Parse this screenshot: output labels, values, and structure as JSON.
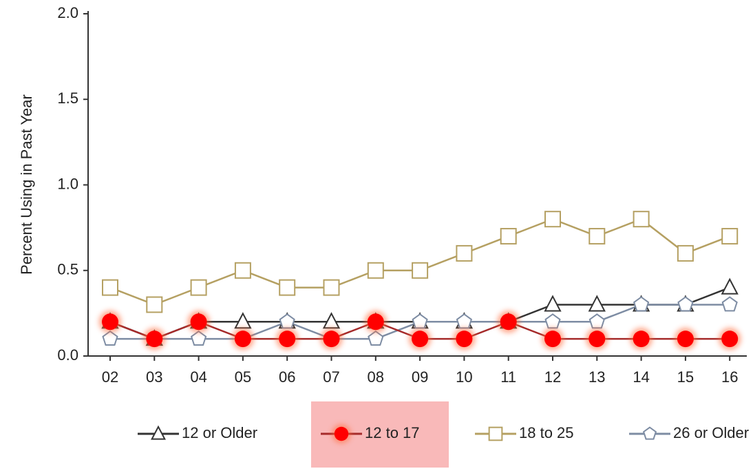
{
  "chart_data": {
    "type": "line",
    "ylabel": "Percent Using in Past Year",
    "categories": [
      "02",
      "03",
      "04",
      "05",
      "06",
      "07",
      "08",
      "09",
      "10",
      "11",
      "12",
      "13",
      "14",
      "15",
      "16"
    ],
    "ylim": [
      0,
      2
    ],
    "yticks": [
      {
        "value": 0,
        "label": "0.0"
      },
      0.5,
      {
        "value": 1,
        "label": "1.0"
      },
      1.5,
      {
        "value": 2,
        "label": "2.0"
      }
    ],
    "series": [
      {
        "name": "12 or Older",
        "color": "#333333",
        "marker": "triangle",
        "values": [
          0.2,
          0.1,
          0.2,
          0.2,
          0.2,
          0.2,
          0.2,
          0.2,
          0.2,
          0.2,
          0.3,
          0.3,
          0.3,
          0.3,
          0.4
        ]
      },
      {
        "name": "26 or Older",
        "color": "#7d8ca3",
        "marker": "pentagon",
        "values": [
          0.1,
          0.1,
          0.1,
          0.1,
          0.2,
          0.1,
          0.1,
          0.2,
          0.2,
          0.2,
          0.2,
          0.2,
          0.3,
          0.3,
          0.3
        ]
      },
      {
        "name": "18 to 25",
        "color": "#b5a062",
        "marker": "square",
        "values": [
          0.4,
          0.3,
          0.4,
          0.5,
          0.4,
          0.4,
          0.5,
          0.5,
          0.6,
          0.7,
          0.8,
          0.7,
          0.8,
          0.6,
          0.7
        ]
      },
      {
        "name": "12 to 17",
        "color": "#a52a2a",
        "marker": "circle",
        "values": [
          0.2,
          0.1,
          0.2,
          0.1,
          0.1,
          0.1,
          0.2,
          0.1,
          0.1,
          0.2,
          0.1,
          0.1,
          0.1,
          0.1,
          0.1
        ]
      }
    ],
    "legend_order": [
      0,
      3,
      2,
      1
    ],
    "highlight": "12 to 17"
  }
}
